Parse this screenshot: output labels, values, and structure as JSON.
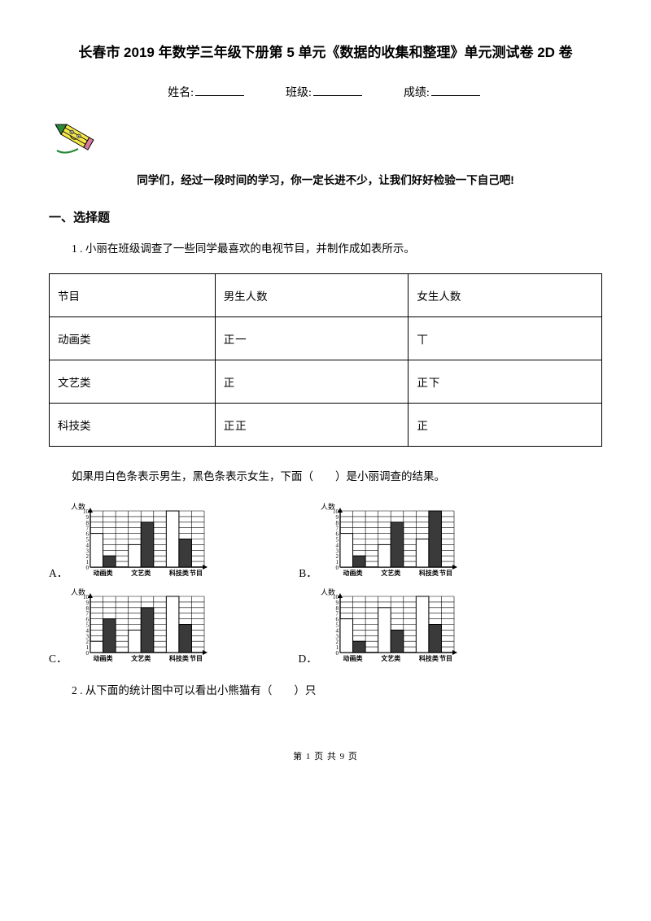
{
  "title": "长春市 2019 年数学三年级下册第 5 单元《数据的收集和整理》单元测试卷 2D 卷",
  "info": {
    "name_label": "姓名:",
    "class_label": "班级:",
    "score_label": "成绩:"
  },
  "encourage": "同学们，经过一段时间的学习，你一定长进不少，让我们好好检验一下自己吧!",
  "section1": "一、选择题",
  "q1": "1 . 小丽在班级调查了一些同学最喜欢的电视节目，并制作成如表所示。",
  "table": {
    "headers": [
      "节目",
      "男生人数",
      "女生人数"
    ],
    "rows": [
      [
        "动画类",
        "正一",
        "丅"
      ],
      [
        "文艺类",
        "正",
        "正下"
      ],
      [
        "科技类",
        "正正",
        "正"
      ]
    ]
  },
  "q1b": "如果用白色条表示男生，黑色条表示女生，下面（　　）是小丽调查的结果。",
  "charts": {
    "ylabel": "人数",
    "xlabels": [
      "动画类",
      "文艺类",
      "科技类",
      "节目"
    ],
    "yticks": [
      0,
      1,
      2,
      3,
      4,
      5,
      6,
      7,
      8,
      9,
      10
    ],
    "options": {
      "A": {
        "bars": [
          [
            6,
            2
          ],
          [
            4,
            8
          ],
          [
            10,
            5
          ]
        ]
      },
      "B": {
        "bars": [
          [
            6,
            2
          ],
          [
            4,
            8
          ],
          [
            5,
            10
          ]
        ]
      },
      "C": {
        "bars": [
          [
            2,
            6
          ],
          [
            4,
            8
          ],
          [
            10,
            5
          ]
        ]
      },
      "D": {
        "bars": [
          [
            6,
            2
          ],
          [
            8,
            4
          ],
          [
            10,
            5
          ]
        ]
      }
    },
    "bar_colors": {
      "boy": "#ffffff",
      "girl": "#3a3a3a"
    },
    "grid_color": "#000000",
    "width": 170,
    "height": 95
  },
  "q2": "2 . 从下面的统计图中可以看出小熊猫有（　　）只",
  "footer": "第 1 页 共 9 页",
  "pencil": {
    "body_color": "#f5e84a",
    "tip_color": "#2a8a3a",
    "eraser_color": "#d97a9e",
    "line_color": "#2a8a3a"
  }
}
